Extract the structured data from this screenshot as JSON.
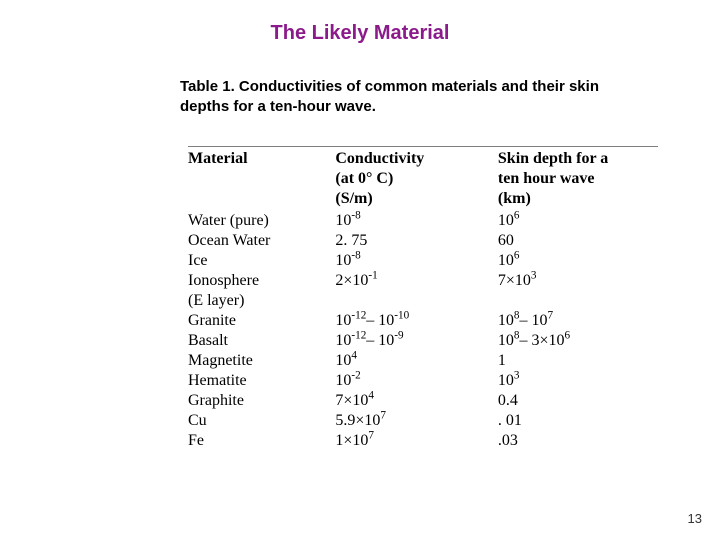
{
  "title": "The Likely Material",
  "caption": "Table 1. Conductivities of common materials and their skin depths for a ten-hour wave.",
  "headers": {
    "material": "Material",
    "conductivity_l1": "Conductivity",
    "conductivity_l2": "(at 0° C)",
    "conductivity_l3": "(S/m)",
    "skin_l1": "Skin depth for a",
    "skin_l2": "ten hour wave",
    "skin_l3": "(km)"
  },
  "rows": [
    {
      "material": "Water (pure)",
      "cond_html": "10<sup>-8</sup>",
      "skin_html": "10<sup>6</sup>"
    },
    {
      "material": "Ocean Water",
      "cond_html": "2. 75",
      "skin_html": "60"
    },
    {
      "material": "Ice",
      "cond_html": "10<sup>-8</sup>",
      "skin_html": "10<sup>6</sup>"
    },
    {
      "material": "Ionosphere<br>(E layer)",
      "cond_html": "2×10<sup>-1</sup>",
      "skin_html": "7×10<sup>3</sup>"
    },
    {
      "material": "Granite",
      "cond_html": "10<sup>-12</sup>– 10<sup>-10</sup>",
      "skin_html": "10<sup>8</sup>– 10<sup>7</sup>"
    },
    {
      "material": "Basalt",
      "cond_html": "10<sup>-12</sup>– 10<sup>-9</sup>",
      "skin_html": "10<sup>8</sup>– 3×10<sup>6</sup>"
    },
    {
      "material": "Magnetite",
      "cond_html": "10<sup>4</sup>",
      "skin_html": "1"
    },
    {
      "material": "Hematite",
      "cond_html": "10<sup>-2</sup>",
      "skin_html": "10<sup>3</sup>"
    },
    {
      "material": "Graphite",
      "cond_html": "7×10<sup>4</sup>",
      "skin_html": "0.4"
    },
    {
      "material": "Cu",
      "cond_html": "5.9×10<sup>7</sup>",
      "skin_html": ". 01"
    },
    {
      "material": "Fe",
      "cond_html": "1×10<sup>7</sup>",
      "skin_html": ".03"
    }
  ],
  "page_number": "13",
  "colors": {
    "title": "#8b1a8b",
    "text": "#000000",
    "background": "#ffffff",
    "rule": "#808080"
  }
}
